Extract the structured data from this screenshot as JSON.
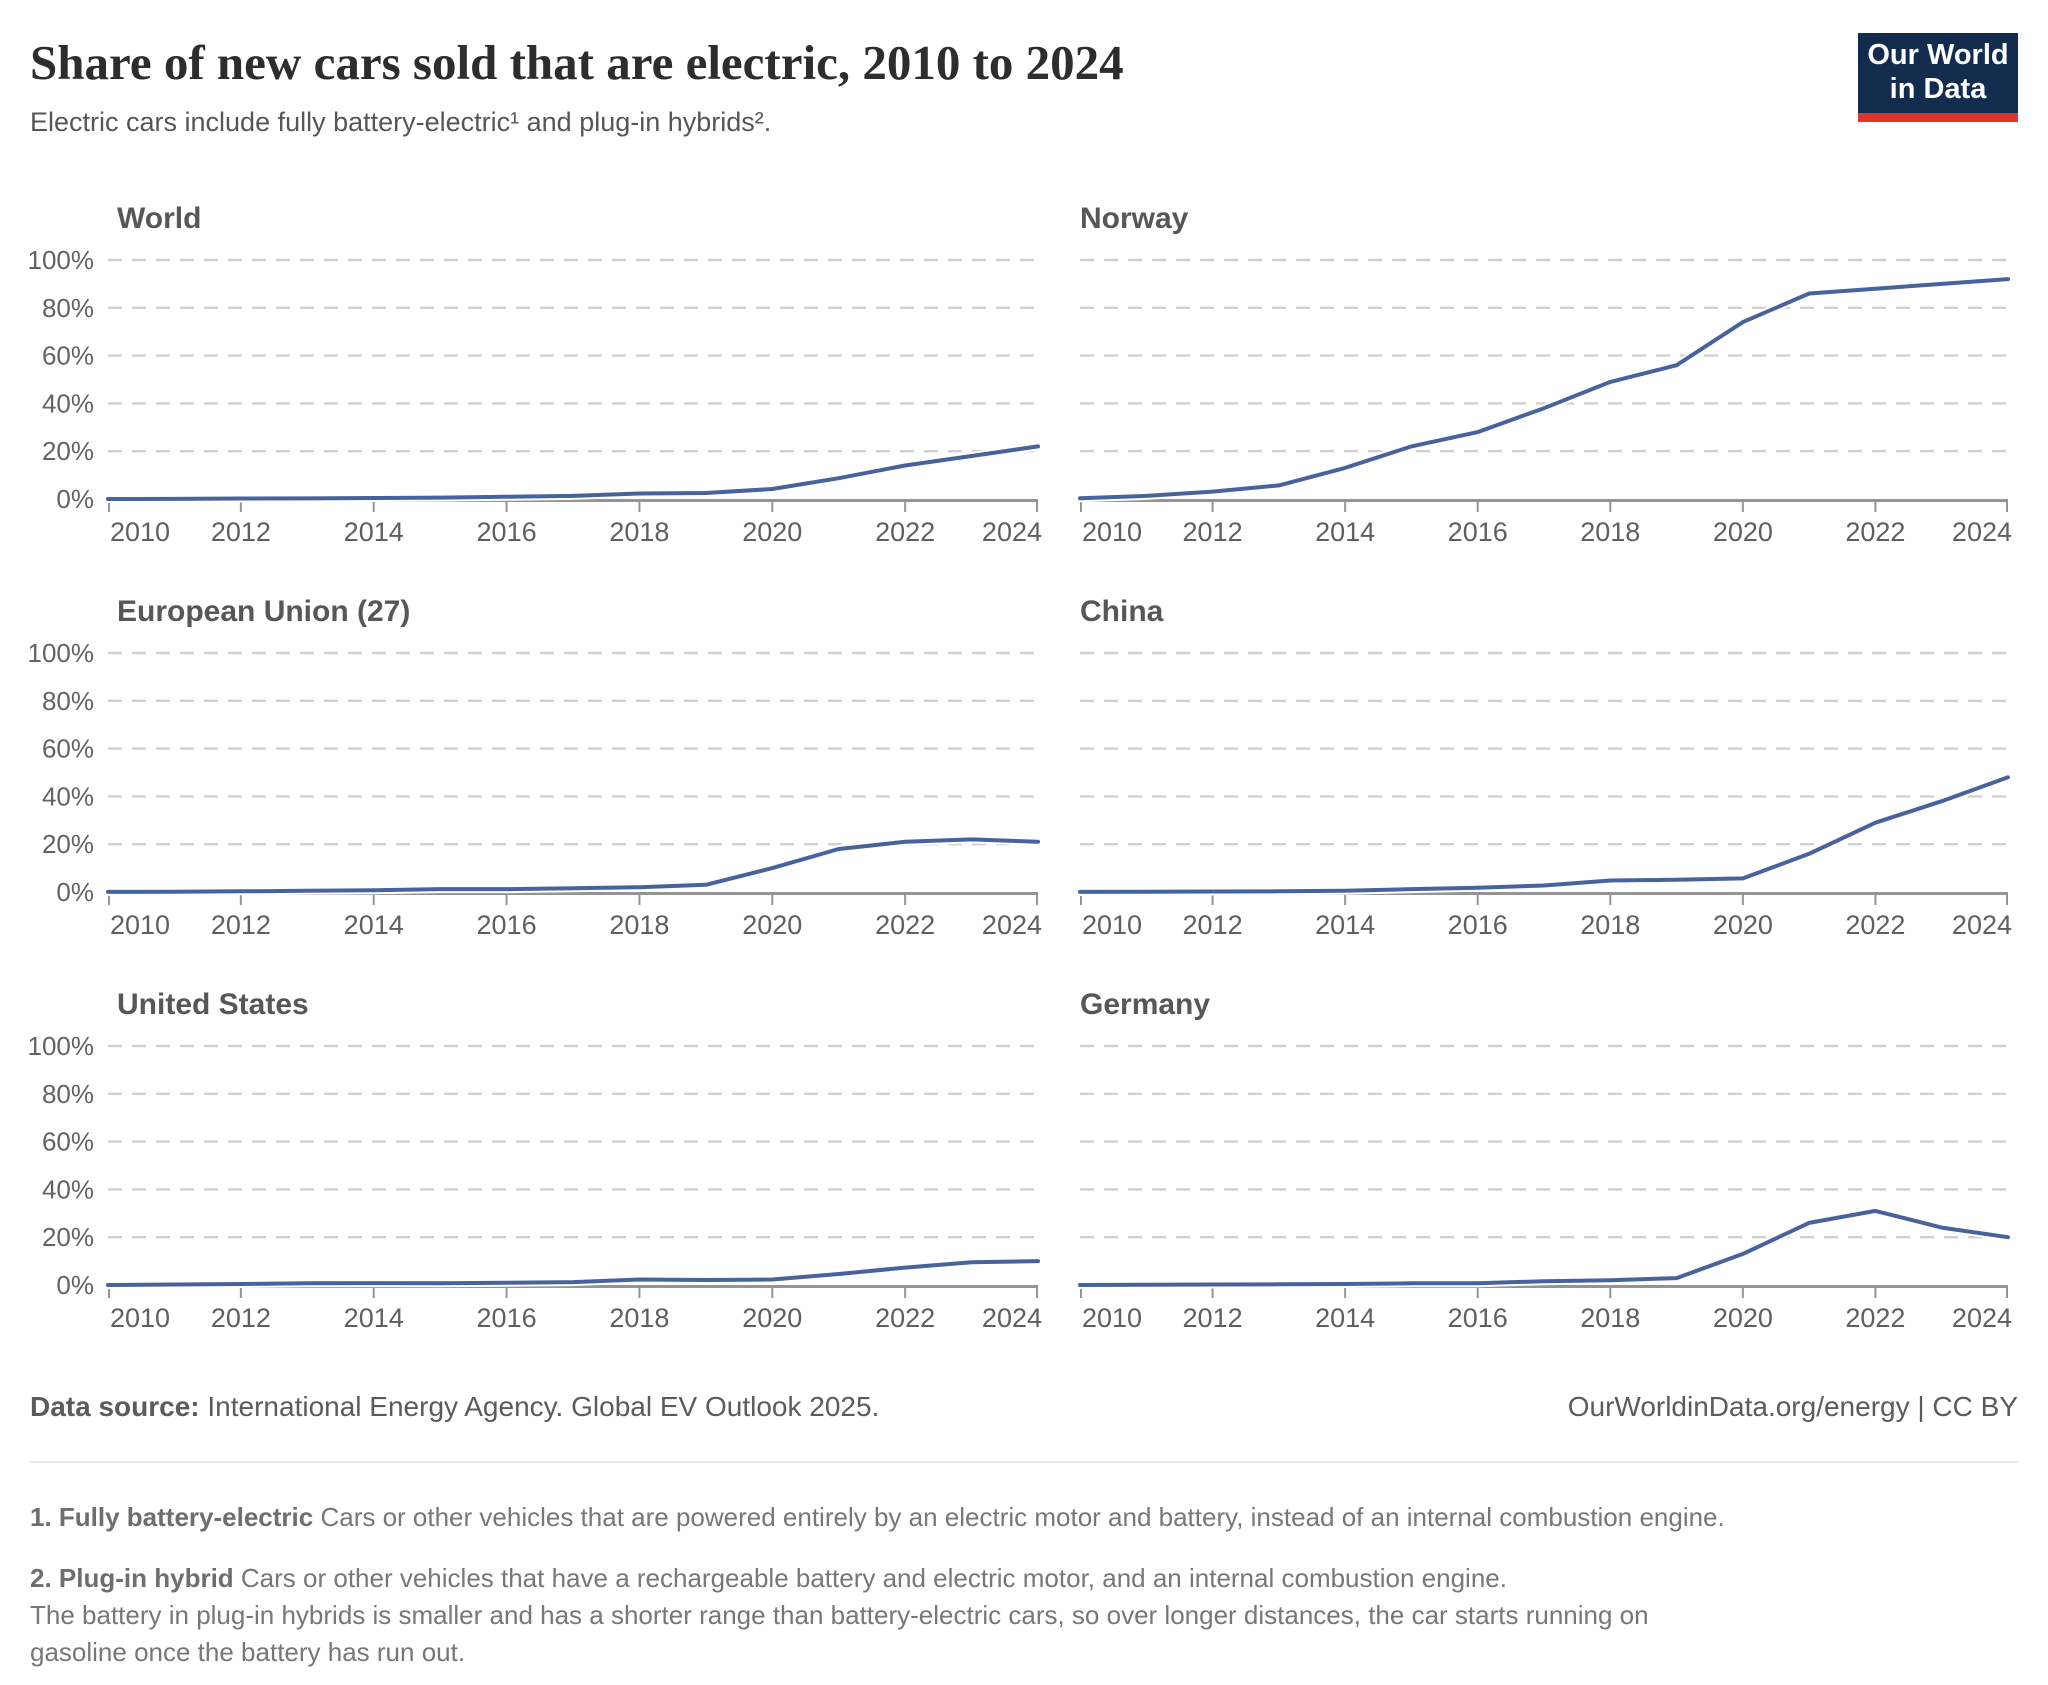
{
  "header": {
    "title": "Share of new cars sold that are electric, 2010 to 2024",
    "subtitle": "Electric cars include fully battery-electric¹ and plug-in hybrids².",
    "logo_line1": "Our World",
    "logo_line2": "in Data"
  },
  "footer": {
    "source_label": "Data source:",
    "source_text": " International Energy Agency. Global EV Outlook 2025.",
    "rights": "OurWorldinData.org/energy | CC BY"
  },
  "footnotes": [
    {
      "lead": "1. Fully battery-electric",
      "text": " Cars or other vehicles that are powered entirely by an electric motor and battery, instead of an internal combustion engine."
    },
    {
      "lead": "2. Plug-in hybrid",
      "text": " Cars or other vehicles that have a rechargeable battery and electric motor, and an internal combustion engine.\nThe battery in plug-in hybrids is smaller and has a shorter range than battery-electric cars, so over longer distances, the car starts running on\ngasoline once the battery has run out."
    }
  ],
  "colors": {
    "line": "#48639b",
    "grid": "#d0d0d0",
    "axis": "#949494",
    "axis_text": "#5f5f5f",
    "ylabel_text": "#636363",
    "logo_bg": "#132c4e",
    "logo_stripe": "#e0352b"
  },
  "chart_data": {
    "type": "line",
    "x": [
      2010,
      2011,
      2012,
      2013,
      2014,
      2015,
      2016,
      2017,
      2018,
      2019,
      2020,
      2021,
      2022,
      2023,
      2024
    ],
    "xtick_labels": [
      "2010",
      "2012",
      "2014",
      "2016",
      "2018",
      "2020",
      "2022",
      "2024"
    ],
    "ytick_values": [
      0,
      20,
      40,
      60,
      80,
      100
    ],
    "ytick_labels": [
      "0%",
      "20%",
      "40%",
      "60%",
      "80%",
      "100%"
    ],
    "ylim": [
      0,
      100
    ],
    "grid": "horizontal-dashed",
    "legend": "none",
    "series": [
      {
        "name": "World",
        "values": [
          0.01,
          0.05,
          0.2,
          0.25,
          0.4,
          0.6,
          0.9,
          1.3,
          2.3,
          2.5,
          4.2,
          8.7,
          14,
          18,
          22
        ]
      },
      {
        "name": "Norway",
        "values": [
          0.3,
          1.3,
          3.1,
          5.7,
          13,
          22,
          28,
          38,
          49,
          56,
          74,
          86,
          88,
          90,
          92
        ]
      },
      {
        "name": "European Union (27)",
        "values": [
          0.05,
          0.1,
          0.3,
          0.5,
          0.7,
          1.2,
          1.2,
          1.6,
          2.0,
          3.0,
          10,
          18,
          21,
          22,
          21
        ]
      },
      {
        "name": "China",
        "values": [
          0.03,
          0.1,
          0.2,
          0.3,
          0.5,
          1.2,
          1.8,
          2.7,
          4.8,
          5.1,
          5.7,
          16,
          29,
          38,
          48
        ]
      },
      {
        "name": "United States",
        "values": [
          0.01,
          0.2,
          0.4,
          0.7,
          0.8,
          0.7,
          0.9,
          1.2,
          2.3,
          2.1,
          2.3,
          4.6,
          7.3,
          9.5,
          10
        ]
      },
      {
        "name": "Germany",
        "values": [
          0.01,
          0.1,
          0.2,
          0.3,
          0.4,
          0.7,
          0.7,
          1.6,
          2.0,
          2.9,
          13,
          26,
          31,
          24,
          20
        ]
      }
    ]
  }
}
